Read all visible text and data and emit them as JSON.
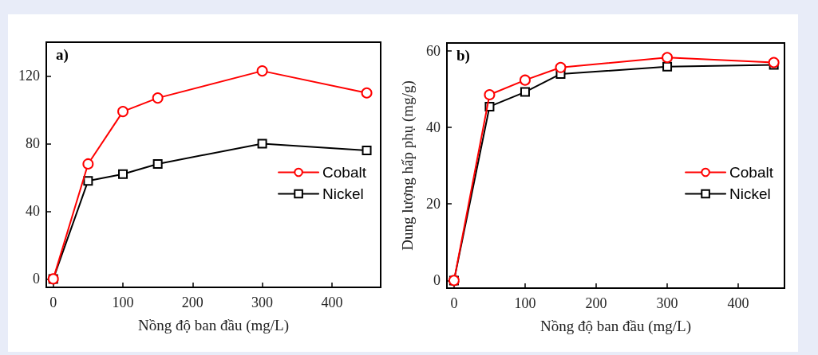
{
  "chart_data": [
    {
      "type": "line",
      "annotations": [
        "a)"
      ],
      "xlabel": "Nồng độ ban đầu (mg/L)",
      "x": [
        0,
        50,
        100,
        150,
        300,
        450
      ],
      "xlim": [
        -10,
        470
      ],
      "xticks": [
        0,
        100,
        200,
        300,
        400
      ],
      "ylim": [
        -5,
        140
      ],
      "yticks": [
        0,
        40,
        80,
        120
      ],
      "legend": "right",
      "grid": false,
      "series": [
        {
          "name": "Cobalt",
          "color": "#ff0000",
          "marker": "circle",
          "values": [
            0,
            68,
            99,
            107,
            123,
            110
          ]
        },
        {
          "name": "Nickel",
          "color": "#000000",
          "marker": "square",
          "values": [
            0,
            58,
            62,
            68,
            80,
            76
          ]
        }
      ]
    },
    {
      "type": "line",
      "annotations": [
        "b)"
      ],
      "xlabel": "Nồng độ ban đầu (mg/L)",
      "ylabel": "Dung lượng hấp phụ (mg/g)",
      "x": [
        0,
        50,
        100,
        150,
        300,
        450
      ],
      "xlim": [
        -10,
        465
      ],
      "xticks": [
        0,
        100,
        200,
        300,
        400
      ],
      "ylim": [
        -2,
        62
      ],
      "yticks": [
        0,
        20,
        40,
        60
      ],
      "legend": "right",
      "grid": false,
      "series": [
        {
          "name": "Cobalt",
          "color": "#ff0000",
          "marker": "circle",
          "values": [
            0,
            48.5,
            52.3,
            55.6,
            58.2,
            56.9
          ]
        },
        {
          "name": "Nickel",
          "color": "#000000",
          "marker": "square",
          "values": [
            0,
            45.4,
            49.2,
            53.9,
            55.8,
            56.3
          ]
        }
      ]
    }
  ]
}
